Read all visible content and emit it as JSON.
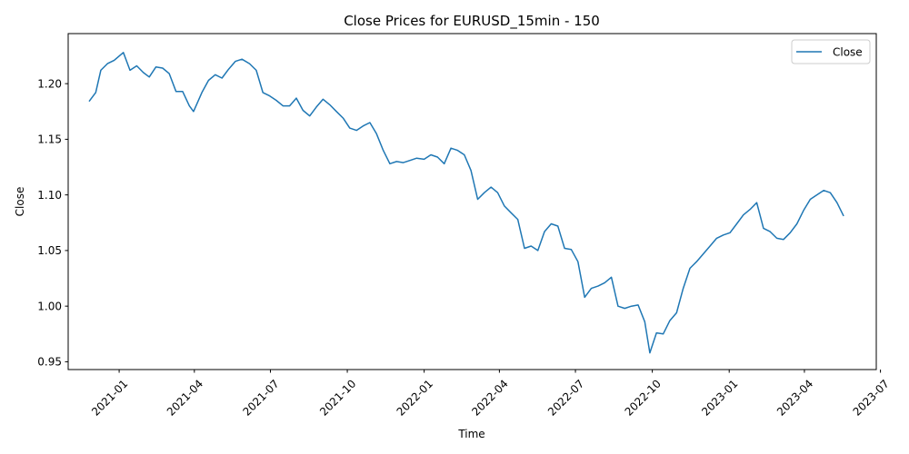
{
  "chart_data": {
    "type": "line",
    "title": "Close Prices for EURUSD_15min - 150",
    "xlabel": "Time",
    "ylabel": "Close",
    "x_range": [
      "2020-11-01",
      "2023-06-26"
    ],
    "ylim": [
      0.943,
      1.245
    ],
    "y_ticks": [
      0.95,
      1.0,
      1.05,
      1.1,
      1.15,
      1.2
    ],
    "y_tick_labels": [
      "0.95",
      "1.00",
      "1.05",
      "1.10",
      "1.15",
      "1.20"
    ],
    "x_ticks": [
      "2021-01-01",
      "2021-04-01",
      "2021-07-01",
      "2021-10-01",
      "2022-01-01",
      "2022-04-01",
      "2022-07-01",
      "2022-10-01",
      "2023-01-01",
      "2023-04-01",
      "2023-07-01"
    ],
    "x_tick_labels": [
      "2021-01",
      "2021-04",
      "2021-07",
      "2021-10",
      "2022-01",
      "2022-04",
      "2022-07",
      "2022-10",
      "2023-01",
      "2023-04",
      "2023-07"
    ],
    "grid": false,
    "legend": "upper-right",
    "series": [
      {
        "name": "Close",
        "color": "#1f77b4",
        "x": [
          "2020-11-26",
          "2020-12-04",
          "2020-12-10",
          "2020-12-18",
          "2020-12-26",
          "2021-01-06",
          "2021-01-14",
          "2021-01-22",
          "2021-01-30",
          "2021-02-06",
          "2021-02-14",
          "2021-02-22",
          "2021-03-02",
          "2021-03-10",
          "2021-03-18",
          "2021-03-26",
          "2021-03-31",
          "2021-04-10",
          "2021-04-18",
          "2021-04-26",
          "2021-05-04",
          "2021-05-12",
          "2021-05-20",
          "2021-05-28",
          "2021-06-06",
          "2021-06-14",
          "2021-06-22",
          "2021-06-30",
          "2021-07-08",
          "2021-07-16",
          "2021-07-24",
          "2021-08-01",
          "2021-08-09",
          "2021-08-17",
          "2021-08-25",
          "2021-09-02",
          "2021-09-10",
          "2021-09-18",
          "2021-09-26",
          "2021-10-04",
          "2021-10-12",
          "2021-10-20",
          "2021-10-28",
          "2021-11-05",
          "2021-11-13",
          "2021-11-21",
          "2021-11-29",
          "2021-12-07",
          "2021-12-15",
          "2021-12-23",
          "2022-01-01",
          "2022-01-09",
          "2022-01-17",
          "2022-01-25",
          "2022-02-02",
          "2022-02-10",
          "2022-02-18",
          "2022-02-26",
          "2022-03-06",
          "2022-03-14",
          "2022-03-22",
          "2022-03-30",
          "2022-04-07",
          "2022-04-15",
          "2022-04-23",
          "2022-05-01",
          "2022-05-09",
          "2022-05-17",
          "2022-05-25",
          "2022-06-02",
          "2022-06-10",
          "2022-06-18",
          "2022-06-26",
          "2022-07-04",
          "2022-07-12",
          "2022-07-20",
          "2022-07-28",
          "2022-08-05",
          "2022-08-13",
          "2022-08-21",
          "2022-08-29",
          "2022-09-06",
          "2022-09-14",
          "2022-09-22",
          "2022-09-28",
          "2022-10-06",
          "2022-10-14",
          "2022-10-22",
          "2022-10-30",
          "2022-11-07",
          "2022-11-15",
          "2022-11-23",
          "2022-12-01",
          "2022-12-09",
          "2022-12-17",
          "2022-12-25",
          "2023-01-02",
          "2023-01-10",
          "2023-01-18",
          "2023-01-26",
          "2023-02-03",
          "2023-02-11",
          "2023-02-19",
          "2023-02-27",
          "2023-03-07",
          "2023-03-15",
          "2023-03-23",
          "2023-03-31",
          "2023-04-08",
          "2023-04-16",
          "2023-04-24",
          "2023-05-02",
          "2023-05-10",
          "2023-05-18"
        ],
        "y": [
          1.184,
          1.192,
          1.212,
          1.218,
          1.221,
          1.228,
          1.212,
          1.216,
          1.21,
          1.206,
          1.215,
          1.214,
          1.209,
          1.193,
          1.193,
          1.18,
          1.175,
          1.192,
          1.203,
          1.208,
          1.205,
          1.213,
          1.22,
          1.222,
          1.218,
          1.212,
          1.192,
          1.189,
          1.185,
          1.18,
          1.18,
          1.187,
          1.176,
          1.171,
          1.179,
          1.186,
          1.181,
          1.175,
          1.169,
          1.16,
          1.158,
          1.162,
          1.165,
          1.155,
          1.14,
          1.128,
          1.13,
          1.129,
          1.131,
          1.133,
          1.132,
          1.136,
          1.134,
          1.128,
          1.142,
          1.14,
          1.136,
          1.122,
          1.096,
          1.102,
          1.107,
          1.102,
          1.09,
          1.084,
          1.078,
          1.052,
          1.054,
          1.05,
          1.067,
          1.074,
          1.072,
          1.052,
          1.051,
          1.04,
          1.008,
          1.016,
          1.018,
          1.021,
          1.026,
          1.0,
          0.998,
          1.0,
          1.001,
          0.986,
          0.958,
          0.976,
          0.975,
          0.987,
          0.994,
          1.016,
          1.034,
          1.04,
          1.047,
          1.054,
          1.061,
          1.064,
          1.066,
          1.074,
          1.082,
          1.087,
          1.093,
          1.07,
          1.067,
          1.061,
          1.06,
          1.066,
          1.074,
          1.086,
          1.096,
          1.1,
          1.104,
          1.102,
          1.093,
          1.081
        ]
      }
    ]
  }
}
